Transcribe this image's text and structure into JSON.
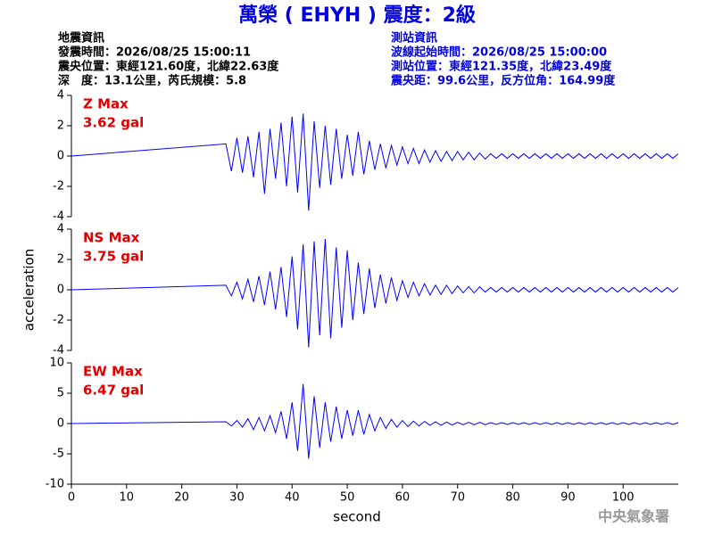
{
  "title": "萬榮 ( EHYH ) 震度：2級",
  "info_left": [
    "地震資訊",
    "發震時間：2026/08/25 15:00:11",
    "震央位置：東經121.60度，北緯22.63度",
    "深　度：13.1公里，芮氏規模：5.8"
  ],
  "info_right": [
    "測站資訊",
    "波線起始時間：2026/08/25 15:00:00",
    "測站位置：東經121.35度，北緯23.49度",
    "震央距：99.6公里，反方位角：164.99度"
  ],
  "footer": "中央氣象署",
  "chart_data": [
    {
      "type": "line",
      "label": "Z Max",
      "max_label": "3.62 gal",
      "color": "#0000ff",
      "xlim": [
        0,
        110
      ],
      "ylim": [
        -4,
        4
      ],
      "yticks": [
        -4,
        -2,
        0,
        2,
        4
      ],
      "x": [
        0,
        28,
        29,
        30,
        31,
        32,
        33,
        34,
        35,
        36,
        37,
        38,
        39,
        40,
        41,
        42,
        43,
        44,
        45,
        46,
        47,
        48,
        49,
        50,
        51,
        52,
        53,
        54,
        55,
        56,
        57,
        58,
        59,
        60,
        61,
        62,
        63,
        64,
        65,
        66,
        67,
        68,
        69,
        70,
        71,
        72,
        73,
        74,
        75,
        76,
        77,
        78,
        79,
        80,
        81,
        82,
        83,
        84,
        85,
        86,
        87,
        88,
        89,
        90,
        91,
        92,
        93,
        94,
        95,
        96,
        97,
        98,
        99,
        100,
        101,
        102,
        103,
        104,
        105,
        106,
        107,
        108,
        109,
        110
      ],
      "values": [
        0,
        0.8,
        -1.0,
        1.2,
        -1.1,
        1.3,
        -1.4,
        1.6,
        -2.5,
        1.8,
        -1.5,
        2.2,
        -2.0,
        2.6,
        -2.4,
        2.8,
        -3.6,
        2.3,
        -2.1,
        2.0,
        -1.9,
        1.8,
        -1.5,
        1.4,
        -1.3,
        1.6,
        -1.2,
        1.0,
        -0.9,
        0.8,
        -0.8,
        0.7,
        -0.6,
        0.6,
        -0.5,
        0.5,
        -0.5,
        0.4,
        -0.4,
        0.35,
        -0.35,
        0.3,
        -0.3,
        0.3,
        -0.25,
        0.25,
        -0.25,
        0.2,
        -0.2,
        0.15,
        -0.15,
        0.15,
        -0.15,
        0.15,
        -0.15,
        0.15,
        -0.15,
        0.15,
        -0.15,
        0.15,
        -0.15,
        0.15,
        -0.15,
        0.15,
        -0.15,
        0.15,
        -0.15,
        0.15,
        -0.15,
        0.15,
        -0.15,
        0.15,
        -0.15,
        0.15,
        -0.15,
        0.15,
        -0.15,
        0.15,
        -0.15,
        0.15,
        -0.15,
        0.15,
        -0.15,
        0.15
      ]
    },
    {
      "type": "line",
      "label": "NS Max",
      "max_label": "3.75 gal",
      "color": "#0000ff",
      "ylabel": "acceleration",
      "xlim": [
        0,
        110
      ],
      "ylim": [
        -4,
        4
      ],
      "yticks": [
        -4,
        -2,
        0,
        2,
        4
      ],
      "x": [
        0,
        28,
        29,
        30,
        31,
        32,
        33,
        34,
        35,
        36,
        37,
        38,
        39,
        40,
        41,
        42,
        43,
        44,
        45,
        46,
        47,
        48,
        49,
        50,
        51,
        52,
        53,
        54,
        55,
        56,
        57,
        58,
        59,
        60,
        61,
        62,
        63,
        64,
        65,
        66,
        67,
        68,
        69,
        70,
        71,
        72,
        73,
        74,
        75,
        76,
        77,
        78,
        79,
        80,
        81,
        82,
        83,
        84,
        85,
        86,
        87,
        88,
        89,
        90,
        91,
        92,
        93,
        94,
        95,
        96,
        97,
        98,
        99,
        100,
        101,
        102,
        103,
        104,
        105,
        106,
        107,
        108,
        109,
        110
      ],
      "values": [
        0,
        0.3,
        -0.4,
        0.5,
        -0.6,
        0.7,
        -0.8,
        0.9,
        -1.0,
        1.2,
        -1.3,
        1.5,
        -1.8,
        2.2,
        -2.6,
        3.0,
        -3.8,
        3.2,
        -3.0,
        3.35,
        -3.2,
        2.8,
        -2.5,
        2.6,
        -2.0,
        1.8,
        -1.6,
        1.4,
        -1.2,
        1.0,
        -0.9,
        0.8,
        -0.7,
        0.6,
        -0.5,
        0.5,
        -0.4,
        0.4,
        -0.35,
        0.3,
        -0.3,
        0.3,
        -0.25,
        0.25,
        -0.2,
        0.2,
        -0.2,
        0.2,
        -0.15,
        0.15,
        -0.15,
        0.15,
        -0.15,
        0.15,
        -0.15,
        0.15,
        -0.15,
        0.15,
        -0.15,
        0.15,
        -0.15,
        0.15,
        -0.15,
        0.15,
        -0.15,
        0.15,
        -0.15,
        0.15,
        -0.15,
        0.15,
        -0.15,
        0.15,
        -0.15,
        0.15,
        -0.15,
        0.15,
        -0.15,
        0.15,
        -0.15,
        0.15,
        -0.15,
        0.15,
        -0.15,
        0.15
      ]
    },
    {
      "type": "line",
      "label": "EW Max",
      "max_label": "6.47 gal",
      "color": "#0000ff",
      "xlabel": "second",
      "xlim": [
        0,
        110
      ],
      "xticks": [
        0,
        10,
        20,
        30,
        40,
        50,
        60,
        70,
        80,
        90,
        100
      ],
      "ylim": [
        -10,
        10
      ],
      "yticks": [
        -10,
        -5,
        0,
        5,
        10
      ],
      "x": [
        0,
        28,
        29,
        30,
        31,
        32,
        33,
        34,
        35,
        36,
        37,
        38,
        39,
        40,
        41,
        42,
        43,
        44,
        45,
        46,
        47,
        48,
        49,
        50,
        51,
        52,
        53,
        54,
        55,
        56,
        57,
        58,
        59,
        60,
        61,
        62,
        63,
        64,
        65,
        66,
        67,
        68,
        69,
        70,
        71,
        72,
        73,
        74,
        75,
        76,
        77,
        78,
        79,
        80,
        81,
        82,
        83,
        84,
        85,
        86,
        87,
        88,
        89,
        90,
        91,
        92,
        93,
        94,
        95,
        96,
        97,
        98,
        99,
        100,
        101,
        102,
        103,
        104,
        105,
        106,
        107,
        108,
        109,
        110
      ],
      "values": [
        0,
        0.3,
        -0.4,
        0.5,
        -0.6,
        0.8,
        -1.0,
        1.0,
        -1.2,
        1.3,
        -1.5,
        2.0,
        -2.5,
        3.5,
        -4.5,
        6.5,
        -5.8,
        4.5,
        -4.0,
        3.5,
        -3.0,
        2.8,
        -2.5,
        2.2,
        -2.0,
        2.2,
        -1.8,
        1.5,
        -1.2,
        1.0,
        -0.8,
        0.7,
        -0.6,
        0.5,
        -0.5,
        0.4,
        -0.4,
        0.35,
        -0.3,
        0.3,
        -0.3,
        0.25,
        -0.25,
        0.2,
        -0.2,
        0.2,
        -0.2,
        0.2,
        -0.2,
        0.15,
        -0.15,
        0.15,
        -0.15,
        0.15,
        -0.15,
        0.15,
        -0.15,
        0.15,
        -0.15,
        0.15,
        -0.15,
        0.15,
        -0.15,
        0.15,
        -0.15,
        0.15,
        -0.15,
        0.15,
        -0.15,
        0.15,
        -0.15,
        0.15,
        -0.15,
        0.15,
        -0.15,
        0.15,
        -0.15,
        0.15,
        -0.15,
        0.15,
        -0.15,
        0.15,
        -0.15,
        0.15
      ]
    }
  ]
}
